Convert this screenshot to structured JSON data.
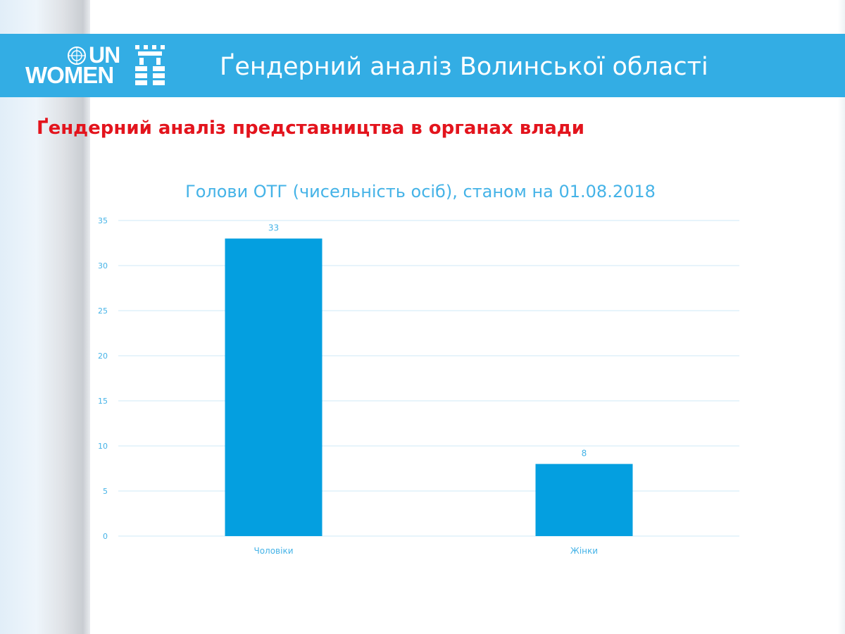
{
  "banner": {
    "logo_un": "UN",
    "logo_women": "WOMEN",
    "title": "Ґендерний аналіз Волинської області"
  },
  "section_heading": "Ґендерний аналіз представництва в органах влади",
  "colors": {
    "banner": "#33ade4",
    "heading": "#e3141d",
    "chart_title": "#45b3e7",
    "bar": "#049fe0",
    "axis_text": "#45b3e7",
    "gridline": "#cfeaf7"
  },
  "chart_data": {
    "type": "bar",
    "title": "Голови ОТГ (чисельність осіб), станом на 01.08.2018",
    "categories": [
      "Чоловіки",
      "Жінки"
    ],
    "values": [
      33,
      8
    ],
    "data_labels": [
      "33",
      "8"
    ],
    "xlabel": "",
    "ylabel": "",
    "ylim": [
      0,
      35
    ],
    "yticks": [
      0,
      5,
      10,
      15,
      20,
      25,
      30,
      35
    ],
    "grid": true,
    "legend": "none"
  }
}
